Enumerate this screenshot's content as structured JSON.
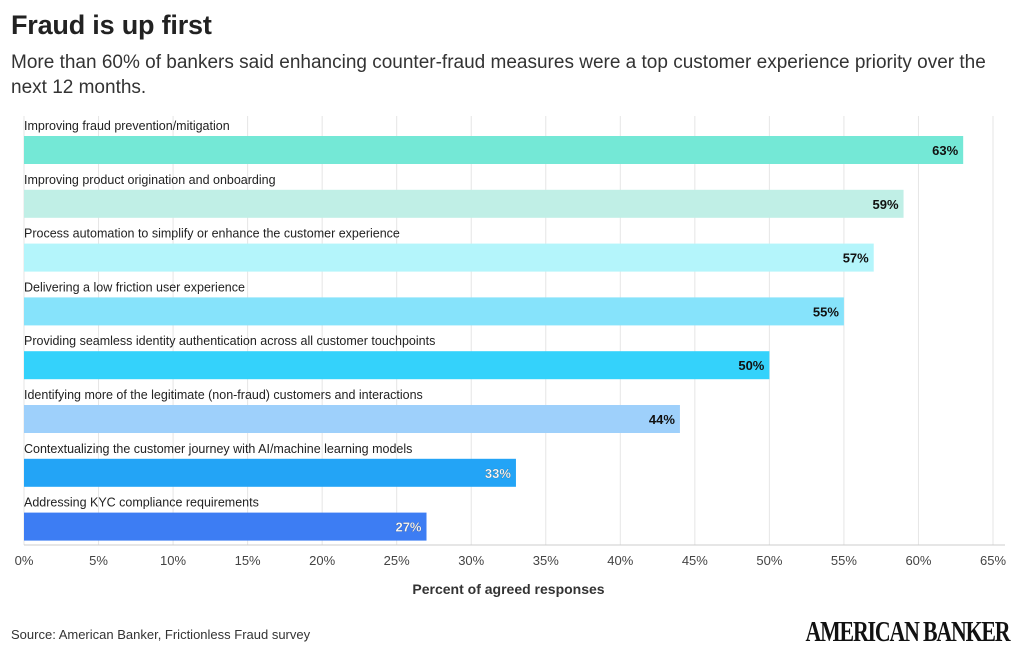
{
  "header": {
    "title": "Fraud is up first",
    "subtitle": "More than 60% of bankers said enhancing counter-fraud measures were a top customer experience priority over the next 12 months."
  },
  "footer": {
    "source": "Source: American Banker, Frictionless Fraud survey",
    "logo_text": "AMERICAN BANKER"
  },
  "chart_data": {
    "type": "bar",
    "orientation": "horizontal",
    "categories": [
      "Improving fraud prevention/mitigation",
      "Improving product origination and onboarding",
      "Process automation to simplify or enhance the customer experience",
      "Delivering a low friction user experience",
      "Providing seamless identity authentication across all customer touchpoints",
      "Identifying more of the legitimate (non-fraud) customers and interactions",
      "Contextualizing the customer journey with AI/machine learning models",
      "Addressing KYC compliance requirements"
    ],
    "values": [
      63,
      59,
      57,
      55,
      50,
      44,
      33,
      27
    ],
    "value_labels": [
      "63%",
      "59%",
      "57%",
      "55%",
      "50%",
      "44%",
      "33%",
      "27%"
    ],
    "colors": [
      "#74e8d6",
      "#c0efe6",
      "#b4f5fb",
      "#86e3fb",
      "#34d2fb",
      "#9ed0fb",
      "#23a4f6",
      "#3d7df3"
    ],
    "label_colors": [
      "#111111",
      "#111111",
      "#111111",
      "#111111",
      "#111111",
      "#111111",
      "#ffffff",
      "#ffffff"
    ],
    "xlabel": "Percent of agreed responses",
    "xlim": [
      0,
      65
    ],
    "xticks": [
      0,
      5,
      10,
      15,
      20,
      25,
      30,
      35,
      40,
      45,
      50,
      55,
      60,
      65
    ],
    "xtick_labels": [
      "0%",
      "5%",
      "10%",
      "15%",
      "20%",
      "25%",
      "30%",
      "35%",
      "40%",
      "45%",
      "50%",
      "55%",
      "60%",
      "65%"
    ],
    "grid": true
  }
}
